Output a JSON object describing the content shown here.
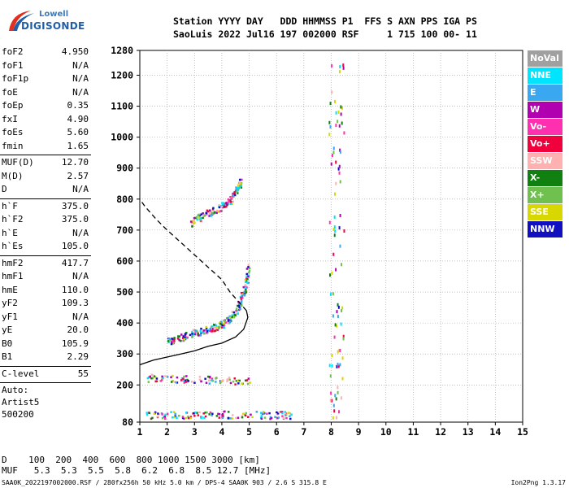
{
  "logo": {
    "line1": "Lowell",
    "line2": "DIGISONDE"
  },
  "header": {
    "line1": "Station YYYY DAY   DDD HHMMSS P1  FFS S AXN PPS IGA PS",
    "line2": "SaoLuis 2022 Jul16 197 002000 RSF     1 715 100 00- 11"
  },
  "params": [
    {
      "name": "foF2",
      "value": "4.950"
    },
    {
      "name": "foF1",
      "value": "N/A"
    },
    {
      "name": "foF1p",
      "value": "N/A"
    },
    {
      "name": "foE",
      "value": "N/A"
    },
    {
      "name": "foEp",
      "value": "0.35"
    },
    {
      "name": "fxI",
      "value": "4.90"
    },
    {
      "name": "foEs",
      "value": "5.60"
    },
    {
      "name": "fmin",
      "value": "1.65"
    },
    {
      "sep": true
    },
    {
      "name": "MUF(D)",
      "value": "12.70"
    },
    {
      "name": "M(D)",
      "value": "2.57"
    },
    {
      "name": "D",
      "value": "N/A"
    },
    {
      "sep": true
    },
    {
      "name": "h`F",
      "value": "375.0"
    },
    {
      "name": "h`F2",
      "value": "375.0"
    },
    {
      "name": "h`E",
      "value": "N/A"
    },
    {
      "name": "h`Es",
      "value": "105.0"
    },
    {
      "sep": true
    },
    {
      "name": "hmF2",
      "value": "417.7"
    },
    {
      "name": "hmF1",
      "value": "N/A"
    },
    {
      "name": "hmE",
      "value": "110.0"
    },
    {
      "name": "yF2",
      "value": "109.3"
    },
    {
      "name": "yF1",
      "value": "N/A"
    },
    {
      "name": "yE",
      "value": "20.0"
    },
    {
      "name": "B0",
      "value": "105.9"
    },
    {
      "name": "B1",
      "value": "2.29"
    },
    {
      "sep": true
    },
    {
      "name": "C-level",
      "value": "55"
    },
    {
      "sep": true
    },
    {
      "text": "Auto:"
    },
    {
      "text": "Artist5"
    },
    {
      "text": "500200"
    }
  ],
  "legend": [
    {
      "label": "NoVal",
      "color": "#a0a0a0"
    },
    {
      "label": "NNE",
      "color": "#00e5ff"
    },
    {
      "label": "E",
      "color": "#3aa8f0"
    },
    {
      "label": "W",
      "color": "#b000b0"
    },
    {
      "label": "Vo-",
      "color": "#ff30b0"
    },
    {
      "label": "Vo+",
      "color": "#f0003c"
    },
    {
      "label": "SSW",
      "color": "#ffb0b0"
    },
    {
      "label": "X-",
      "color": "#108010"
    },
    {
      "label": "X+",
      "color": "#70c050"
    },
    {
      "label": "SSE",
      "color": "#d8d800"
    },
    {
      "label": "NNW",
      "color": "#1010c0"
    }
  ],
  "muf_table": {
    "d_line": "D    100  200  400  600  800 1000 1500 3000 [km]",
    "muf_line": "MUF   5.3  5.3  5.5  5.8  6.2  6.8  8.5 12.7 [MHz]"
  },
  "footer": {
    "left": "SAA0K_2022197002000.RSF / 280fx256h 50 kHz 5.0 km / DPS-4 SAA0K 903 / 2.6 S 315.8 E",
    "right": "Ion2Png 1.3.17"
  },
  "chart_data": {
    "type": "scatter",
    "title": "",
    "xlabel": "",
    "ylabel": "",
    "xlim": [
      1,
      15
    ],
    "ylim": [
      80,
      1280
    ],
    "xticks": [
      1,
      2,
      3,
      4,
      5,
      6,
      7,
      8,
      9,
      10,
      11,
      12,
      13,
      14,
      15
    ],
    "yticks": [
      80,
      200,
      300,
      400,
      500,
      600,
      700,
      800,
      900,
      1000,
      1100,
      1200,
      1280
    ],
    "grid": true,
    "traces": [
      {
        "name": "F2 trace",
        "x": [
          2.0,
          2.4,
          2.8,
          3.2,
          3.6,
          3.9,
          4.2,
          4.5,
          4.7,
          4.85,
          4.95
        ],
        "y": [
          340,
          355,
          365,
          375,
          385,
          395,
          410,
          440,
          480,
          530,
          580
        ]
      },
      {
        "name": "F2 multihop",
        "x": [
          2.8,
          3.2,
          3.6,
          4.0,
          4.3,
          4.5,
          4.7
        ],
        "y": [
          720,
          745,
          760,
          780,
          800,
          830,
          860
        ]
      },
      {
        "name": "Es",
        "x": [
          1.2,
          2.0,
          3.0,
          4.0,
          5.0,
          6.0,
          6.5
        ],
        "y": [
          105,
          105,
          106,
          106,
          105,
          105,
          105
        ]
      },
      {
        "name": "Es 2-hop",
        "x": [
          1.2,
          2.0,
          3.0,
          4.0,
          5.0
        ],
        "y": [
          225,
          222,
          220,
          218,
          215
        ]
      }
    ],
    "profile": {
      "name": "electron density profile",
      "x": [
        1.0,
        1.5,
        2.0,
        2.5,
        3.0,
        3.5,
        4.0,
        4.5,
        4.8,
        4.95,
        4.9,
        4.6,
        4.3,
        4.0,
        3.5,
        3.0,
        2.5,
        2.0,
        1.6,
        1.4,
        1.2,
        1.0
      ],
      "y": [
        265,
        280,
        290,
        300,
        310,
        325,
        335,
        355,
        380,
        418,
        440,
        470,
        500,
        540,
        580,
        620,
        660,
        700,
        735,
        755,
        775,
        800
      ],
      "solid_until": 10
    }
  }
}
